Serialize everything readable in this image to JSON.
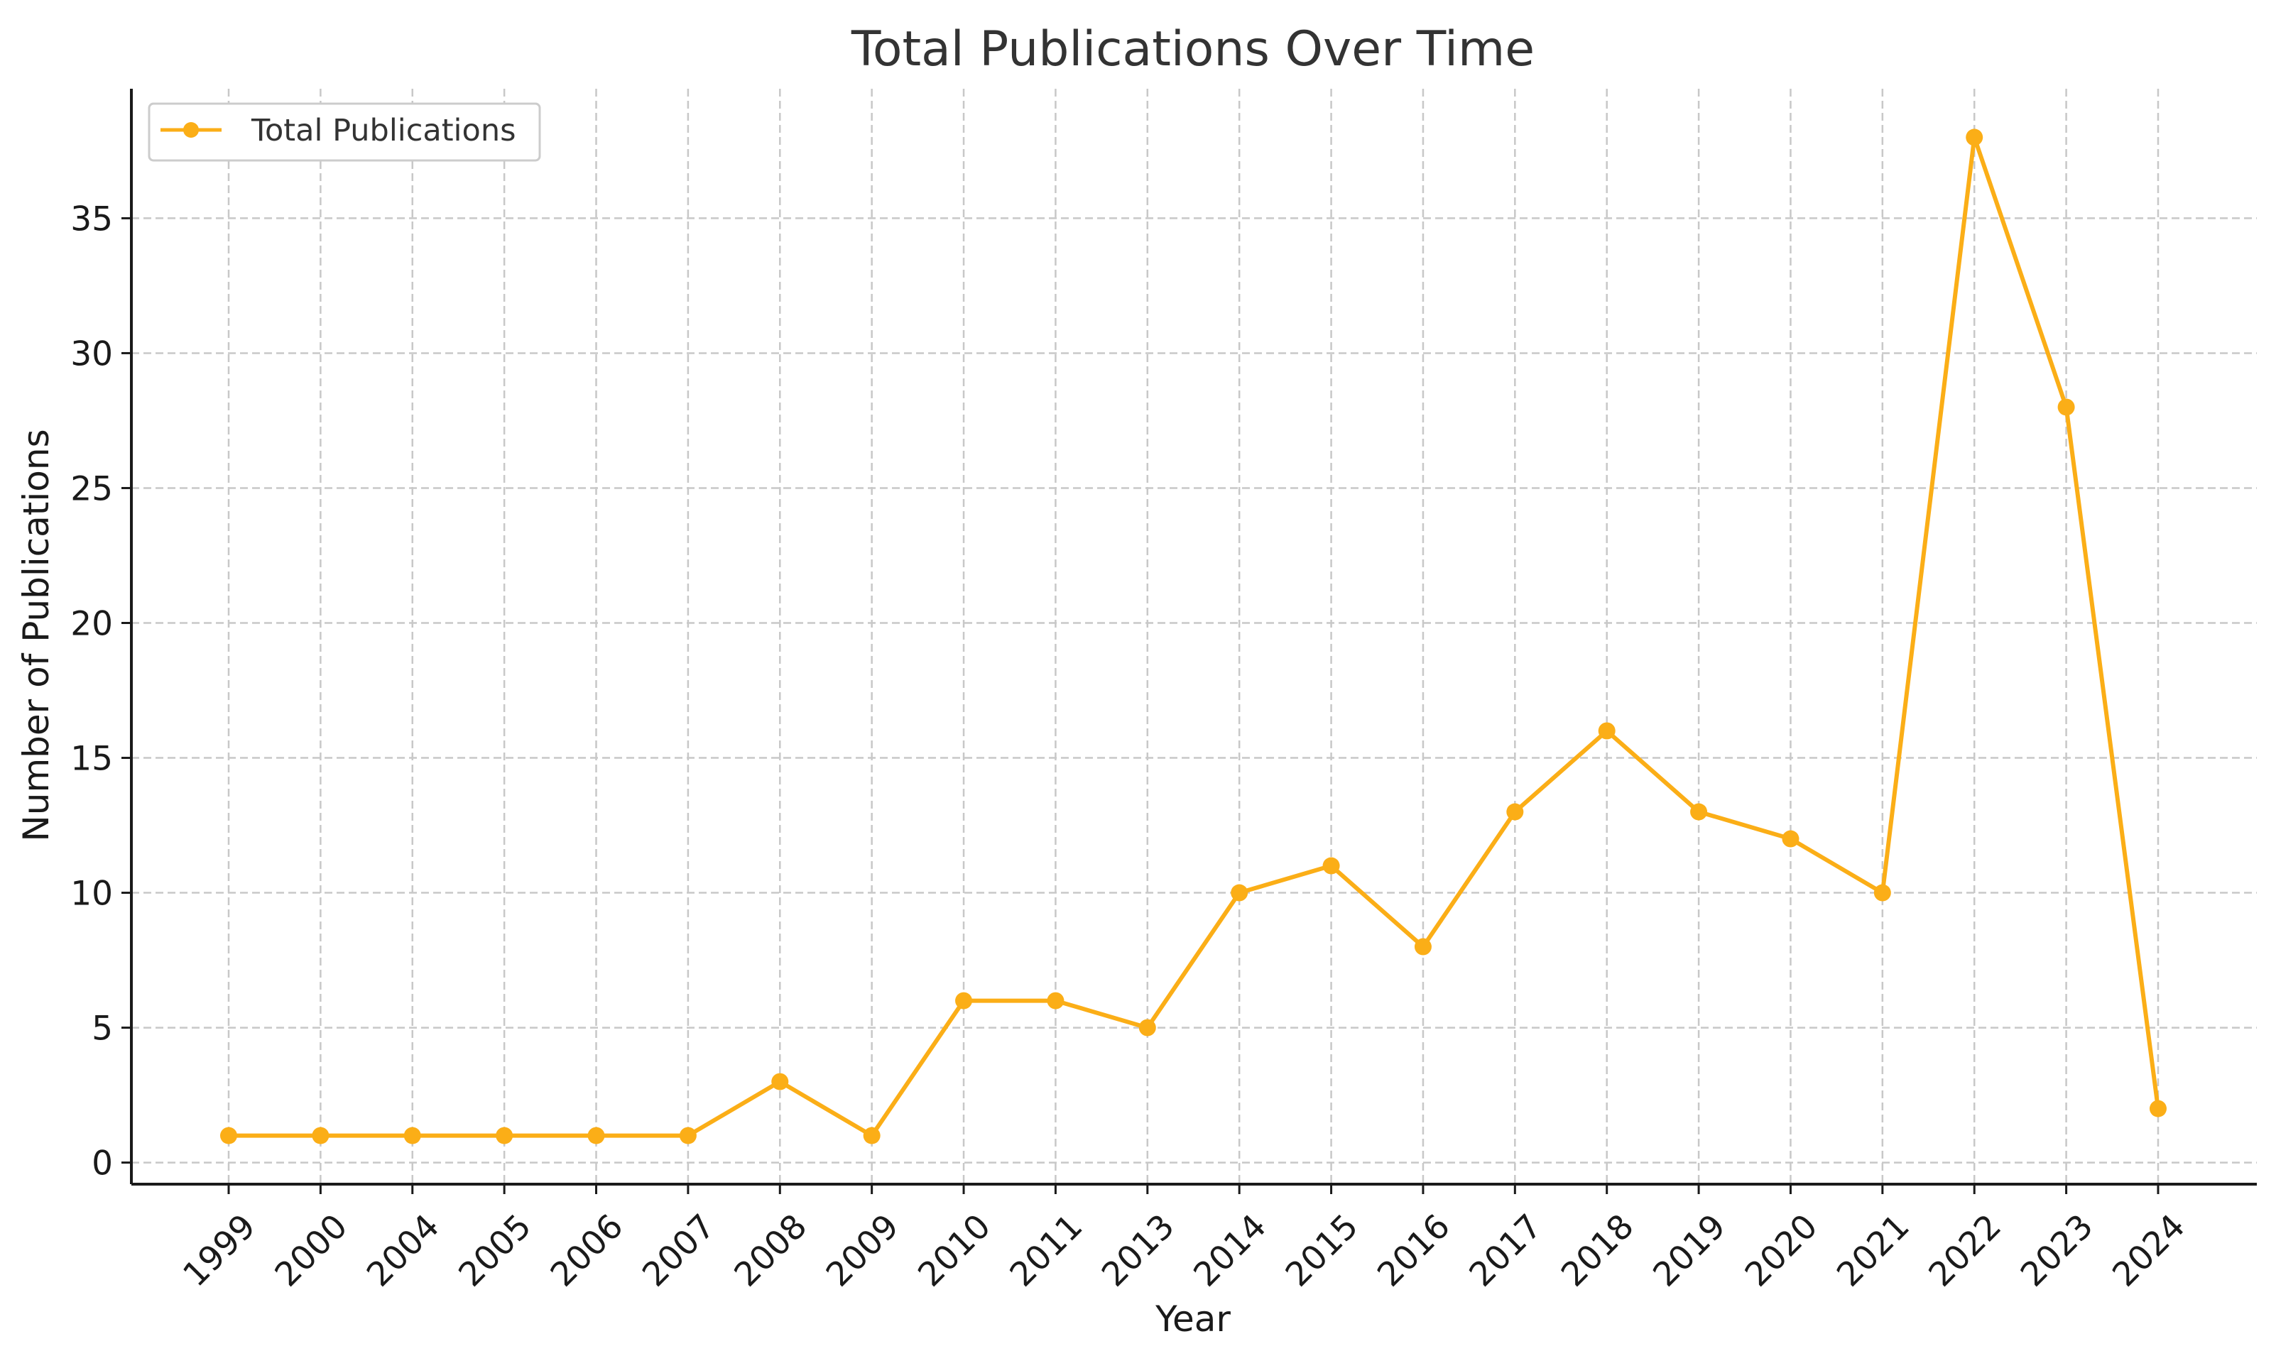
{
  "chart_data": {
    "type": "line",
    "title": "Total Publications Over Time",
    "xlabel": "Year",
    "ylabel": "Number of Publications",
    "categories": [
      "1999",
      "2000",
      "2004",
      "2005",
      "2006",
      "2007",
      "2008",
      "2009",
      "2010",
      "2011",
      "2013",
      "2014",
      "2015",
      "2016",
      "2017",
      "2018",
      "2019",
      "2020",
      "2021",
      "2022",
      "2023",
      "2024"
    ],
    "series": [
      {
        "name": "Total Publications",
        "color": "#FBAE17",
        "values": [
          1,
          1,
          1,
          1,
          1,
          1,
          3,
          1,
          6,
          6,
          5,
          10,
          11,
          8,
          13,
          16,
          13,
          12,
          10,
          38,
          28,
          2
        ]
      }
    ],
    "ylim": [
      -0.8,
      39.8
    ],
    "yticks": [
      0,
      5,
      10,
      15,
      20,
      25,
      30,
      35
    ],
    "grid": true,
    "legend_position": "top-left"
  }
}
